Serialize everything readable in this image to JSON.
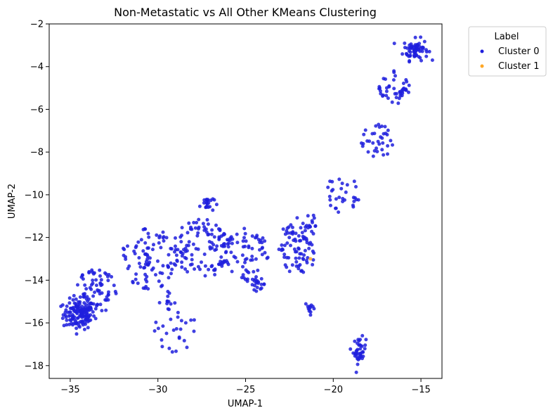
{
  "chart_data": {
    "type": "scatter",
    "title": "Non-Metastatic vs All Other KMeans Clustering",
    "xlabel": "UMAP-1",
    "ylabel": "UMAP-2",
    "xlim": [
      -36.2,
      -13.8
    ],
    "ylim": [
      -18.6,
      -2.0
    ],
    "xticks": [
      -35,
      -30,
      -25,
      -20,
      -15
    ],
    "yticks": [
      -2,
      -4,
      -6,
      -8,
      -10,
      -12,
      -14,
      -16,
      -18
    ],
    "grid": false,
    "legend": {
      "title": "Label",
      "placement": "outside-top-right",
      "entries": [
        "Cluster 0",
        "Cluster 1"
      ]
    },
    "series": [
      {
        "name": "Cluster 0",
        "color": "#1f1fdd",
        "clusters": [
          {
            "cx": -34.5,
            "cy": -15.6,
            "sx": 0.45,
            "sy": 0.35,
            "n": 140
          },
          {
            "cx": -15.3,
            "cy": -3.2,
            "sx": 0.35,
            "sy": 0.25,
            "n": 70
          },
          {
            "cx": -27.2,
            "cy": -10.4,
            "sx": 0.2,
            "sy": 0.2,
            "n": 22
          },
          {
            "cx": -18.5,
            "cy": -17.3,
            "sx": 0.18,
            "sy": 0.3,
            "n": 40
          },
          {
            "cx": -21.3,
            "cy": -15.3,
            "sx": 0.15,
            "sy": 0.15,
            "n": 12
          },
          {
            "cx": -24.3,
            "cy": -14.2,
            "sx": 0.22,
            "sy": 0.12,
            "n": 18
          },
          {
            "cx": -29.5,
            "cy": -15.0,
            "sx": 0.25,
            "sy": 0.2,
            "n": 12
          },
          {
            "cx": -22.5,
            "cy": -12.0,
            "sx": 0.3,
            "sy": 0.3,
            "n": 20
          },
          {
            "cx": -21.5,
            "cy": -11.5,
            "sx": 0.4,
            "sy": 0.5,
            "n": 25
          }
        ],
        "band": [
          {
            "x": -33.5,
            "y": -14.5,
            "r": 1.2,
            "n": 70
          },
          {
            "x": -30.5,
            "y": -13.0,
            "r": 1.6,
            "n": 90
          },
          {
            "x": -27.5,
            "y": -12.5,
            "r": 1.6,
            "n": 110
          },
          {
            "x": -25.0,
            "y": -12.8,
            "r": 1.4,
            "n": 70
          },
          {
            "x": -29.0,
            "y": -16.3,
            "r": 1.2,
            "n": 25
          },
          {
            "x": -22.0,
            "y": -12.8,
            "r": 1.0,
            "n": 50
          },
          {
            "x": -19.5,
            "y": -10.0,
            "r": 1.0,
            "n": 30
          },
          {
            "x": -17.5,
            "y": -7.5,
            "r": 0.9,
            "n": 35
          },
          {
            "x": -16.5,
            "y": -5.0,
            "r": 0.9,
            "n": 45
          }
        ]
      },
      {
        "name": "Cluster 1",
        "color": "#ffa726",
        "points": [
          [
            -21.3,
            -13.0
          ]
        ]
      }
    ]
  }
}
